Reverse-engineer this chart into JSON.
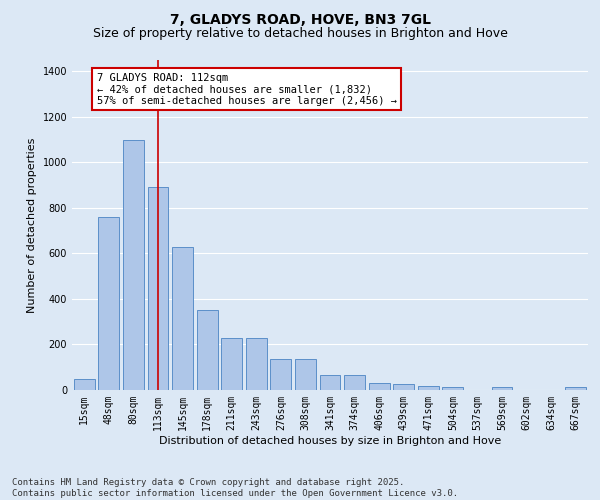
{
  "title": "7, GLADYS ROAD, HOVE, BN3 7GL",
  "subtitle": "Size of property relative to detached houses in Brighton and Hove",
  "xlabel": "Distribution of detached houses by size in Brighton and Hove",
  "ylabel": "Number of detached properties",
  "categories": [
    "15sqm",
    "48sqm",
    "80sqm",
    "113sqm",
    "145sqm",
    "178sqm",
    "211sqm",
    "243sqm",
    "276sqm",
    "308sqm",
    "341sqm",
    "374sqm",
    "406sqm",
    "439sqm",
    "471sqm",
    "504sqm",
    "537sqm",
    "569sqm",
    "602sqm",
    "634sqm",
    "667sqm"
  ],
  "values": [
    48,
    760,
    1100,
    890,
    630,
    350,
    230,
    230,
    135,
    135,
    65,
    65,
    30,
    25,
    18,
    12,
    0,
    12,
    0,
    0,
    12
  ],
  "bar_color": "#aec6e8",
  "bar_edge_color": "#5b8fc9",
  "background_color": "#dce8f5",
  "gridcolor": "#ffffff",
  "vline_x": 3,
  "vline_color": "#cc0000",
  "annotation_title": "7 GLADYS ROAD: 112sqm",
  "annotation_line1": "← 42% of detached houses are smaller (1,832)",
  "annotation_line2": "57% of semi-detached houses are larger (2,456) →",
  "annotation_box_edgecolor": "#cc0000",
  "annotation_box_facecolor": "#ffffff",
  "ylim": [
    0,
    1450
  ],
  "yticks": [
    0,
    200,
    400,
    600,
    800,
    1000,
    1200,
    1400
  ],
  "footer1": "Contains HM Land Registry data © Crown copyright and database right 2025.",
  "footer2": "Contains public sector information licensed under the Open Government Licence v3.0.",
  "title_fontsize": 10,
  "subtitle_fontsize": 9,
  "axis_label_fontsize": 8,
  "tick_fontsize": 7,
  "footer_fontsize": 6.5,
  "ann_fontsize": 7.5
}
